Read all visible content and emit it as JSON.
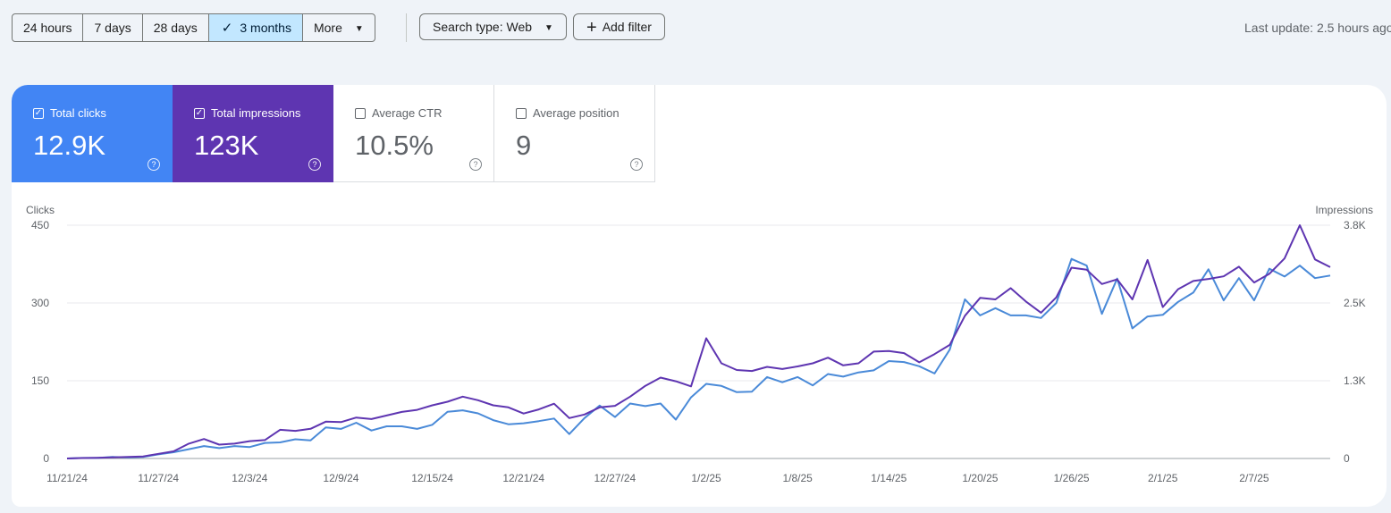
{
  "toolbar": {
    "ranges": [
      {
        "label": "24 hours",
        "selected": false
      },
      {
        "label": "7 days",
        "selected": false
      },
      {
        "label": "28 days",
        "selected": false
      },
      {
        "label": "3 months",
        "selected": true
      },
      {
        "label": "More",
        "selected": false
      }
    ],
    "search_type_label": "Search type: Web",
    "add_filter_label": "Add filter",
    "last_update": "Last update: 2.5 hours ago"
  },
  "metrics": [
    {
      "label": "Total clicks",
      "value": "12.9K",
      "checked": true,
      "color": "#4285f4"
    },
    {
      "label": "Total impressions",
      "value": "123K",
      "checked": true,
      "color": "#5e35b1"
    },
    {
      "label": "Average CTR",
      "value": "10.5%",
      "checked": false
    },
    {
      "label": "Average position",
      "value": "9",
      "checked": false
    }
  ],
  "chart_data": {
    "type": "line",
    "left_axis_label": "Clicks",
    "right_axis_label": "Impressions",
    "left_ticks": [
      "0",
      "150",
      "300",
      "450"
    ],
    "right_ticks": [
      "0",
      "1.3K",
      "2.5K",
      "3.8K"
    ],
    "left_range": [
      0,
      450
    ],
    "right_range": [
      0,
      3800
    ],
    "x_labels": [
      "11/21/24",
      "11/27/24",
      "12/3/24",
      "12/9/24",
      "12/15/24",
      "12/21/24",
      "12/27/24",
      "1/2/25",
      "1/8/25",
      "1/14/25",
      "1/20/25",
      "1/26/25",
      "2/1/25",
      "2/7/25"
    ],
    "x_label_day_index": [
      0,
      6,
      12,
      18,
      24,
      30,
      36,
      42,
      48,
      54,
      60,
      66,
      72,
      78
    ],
    "series": [
      {
        "name": "Clicks",
        "axis": "left",
        "color": "#4a8ad8",
        "values": [
          0,
          1,
          1,
          3,
          2,
          3,
          8,
          12,
          18,
          24,
          20,
          24,
          22,
          30,
          31,
          37,
          35,
          60,
          57,
          69,
          54,
          62,
          62,
          57,
          65,
          90,
          93,
          87,
          74,
          66,
          68,
          72,
          77,
          47,
          78,
          102,
          80,
          106,
          101,
          106,
          75,
          118,
          144,
          140,
          128,
          129,
          157,
          147,
          157,
          141,
          163,
          158,
          166,
          170,
          188,
          186,
          178,
          164,
          210,
          307,
          276,
          290,
          276,
          276,
          271,
          300,
          385,
          372,
          279,
          347,
          251,
          274,
          277,
          302,
          320,
          365,
          305,
          348,
          305,
          366,
          351,
          372,
          348,
          353
        ]
      },
      {
        "name": "Impressions",
        "axis": "right",
        "color": "#5e35b1",
        "values": [
          0,
          8,
          12,
          17,
          25,
          33,
          75,
          117,
          242,
          317,
          225,
          242,
          283,
          300,
          467,
          450,
          483,
          600,
          592,
          667,
          642,
          700,
          758,
          792,
          867,
          925,
          1008,
          950,
          867,
          833,
          733,
          800,
          892,
          658,
          717,
          833,
          858,
          1008,
          1183,
          1317,
          1258,
          1175,
          1958,
          1550,
          1442,
          1425,
          1492,
          1458,
          1500,
          1550,
          1642,
          1517,
          1550,
          1742,
          1750,
          1717,
          1567,
          1700,
          1850,
          2325,
          2617,
          2592,
          2775,
          2558,
          2375,
          2625,
          3108,
          3075,
          2842,
          2917,
          2592,
          3233,
          2467,
          2758,
          2892,
          2925,
          2967,
          3125,
          2867,
          3008,
          3258,
          3800,
          3242,
          3117
        ]
      }
    ]
  }
}
